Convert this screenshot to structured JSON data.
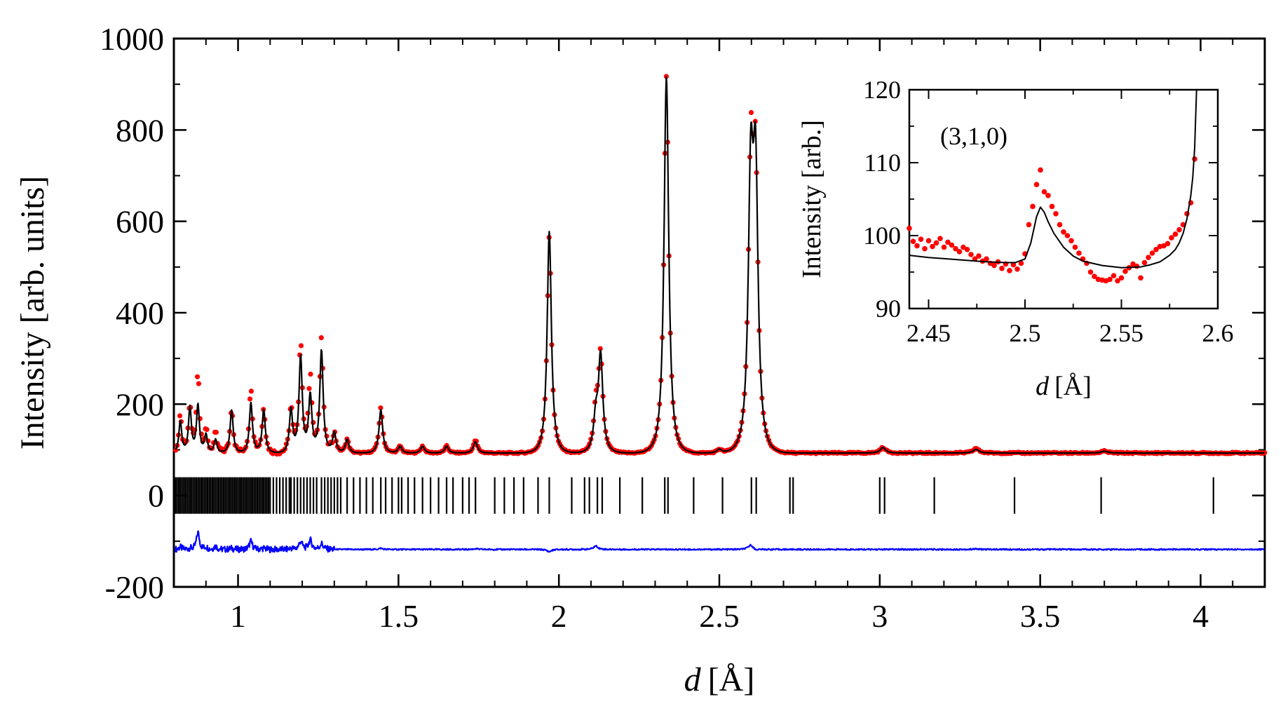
{
  "chart_data": [
    {
      "type": "scatter",
      "role": "main",
      "title": "",
      "xlabel": {
        "var": "d",
        "unit": "[Å]"
      },
      "ylabel": "Intensity [arb. units]",
      "xlim": [
        0.8,
        4.2
      ],
      "ylim": [
        -200,
        1000
      ],
      "x_ticks": [
        1,
        1.5,
        2,
        2.5,
        3,
        3.5,
        4
      ],
      "x_tick_labels": [
        "1",
        "1.5",
        "2",
        "2.5",
        "3",
        "3.5",
        "4"
      ],
      "y_ticks": [
        -200,
        0,
        200,
        400,
        600,
        800,
        1000
      ],
      "y_tick_labels": [
        "-200",
        "0",
        "200",
        "400",
        "600",
        "800",
        "1000"
      ],
      "grid": false,
      "background": 93,
      "colors": {
        "observed": "#ff0000",
        "calculated": "#000000",
        "difference": "#0000ff",
        "tick_marks": "#000000"
      },
      "series": [
        {
          "name": "observed",
          "style": "points"
        },
        {
          "name": "calculated",
          "style": "line"
        },
        {
          "name": "difference",
          "style": "line",
          "offset": -118
        },
        {
          "name": "reflection positions",
          "style": "ticks",
          "y_range": [
            -40,
            40
          ]
        }
      ],
      "peaks": [
        {
          "d": 0.82,
          "height": 70,
          "obs_height": 80
        },
        {
          "d": 0.85,
          "height": 100,
          "obs_height": 105
        },
        {
          "d": 0.875,
          "height": 105,
          "obs_height": 180
        },
        {
          "d": 0.9,
          "height": 40,
          "obs_height": 50
        },
        {
          "d": 0.93,
          "height": 30,
          "obs_height": 45
        },
        {
          "d": 0.98,
          "height": 95,
          "obs_height": 100
        },
        {
          "d": 1.04,
          "height": 110,
          "obs_height": 145
        },
        {
          "d": 1.08,
          "height": 95,
          "obs_height": 100
        },
        {
          "d": 1.165,
          "height": 95,
          "obs_height": 100
        },
        {
          "d": 1.195,
          "height": 210,
          "obs_height": 245
        },
        {
          "d": 1.225,
          "height": 125,
          "obs_height": 165
        },
        {
          "d": 1.26,
          "height": 225,
          "obs_height": 250
        },
        {
          "d": 1.3,
          "height": 45,
          "obs_height": 45
        },
        {
          "d": 1.34,
          "height": 30,
          "obs_height": 30
        },
        {
          "d": 1.445,
          "height": 95,
          "obs_height": 100
        },
        {
          "d": 1.505,
          "height": 15,
          "obs_height": 15
        },
        {
          "d": 1.575,
          "height": 15,
          "obs_height": 15
        },
        {
          "d": 1.65,
          "height": 15,
          "obs_height": 15
        },
        {
          "d": 1.74,
          "height": 25,
          "obs_height": 28
        },
        {
          "d": 1.97,
          "height": 485,
          "obs_height": 475
        },
        {
          "d": 2.115,
          "height": 70,
          "obs_height": 85
        },
        {
          "d": 2.13,
          "height": 210,
          "obs_height": 210
        },
        {
          "d": 2.335,
          "height": 825,
          "obs_height": 825
        },
        {
          "d": 2.5,
          "height": 8,
          "obs_height": 8
        },
        {
          "d": 2.598,
          "height": 565,
          "obs_height": 585
        },
        {
          "d": 2.613,
          "height": 565,
          "obs_height": 560
        },
        {
          "d": 3.01,
          "height": 12,
          "obs_height": 12
        },
        {
          "d": 3.3,
          "height": 8,
          "obs_height": 10
        },
        {
          "d": 3.7,
          "height": 4,
          "obs_height": 4
        }
      ],
      "reflections": [
        0.805,
        0.81,
        0.815,
        0.82,
        0.825,
        0.83,
        0.835,
        0.84,
        0.845,
        0.85,
        0.855,
        0.86,
        0.865,
        0.87,
        0.875,
        0.88,
        0.885,
        0.89,
        0.895,
        0.9,
        0.905,
        0.91,
        0.915,
        0.92,
        0.925,
        0.93,
        0.935,
        0.94,
        0.945,
        0.95,
        0.955,
        0.96,
        0.965,
        0.97,
        0.975,
        0.98,
        0.985,
        0.99,
        0.995,
        1.0,
        1.005,
        1.01,
        1.015,
        1.02,
        1.025,
        1.03,
        1.035,
        1.04,
        1.045,
        1.05,
        1.055,
        1.06,
        1.065,
        1.07,
        1.075,
        1.08,
        1.085,
        1.09,
        1.095,
        1.1,
        1.11,
        1.12,
        1.13,
        1.14,
        1.15,
        1.16,
        1.165,
        1.175,
        1.185,
        1.195,
        1.205,
        1.215,
        1.225,
        1.235,
        1.245,
        1.26,
        1.27,
        1.28,
        1.29,
        1.3,
        1.31,
        1.32,
        1.34,
        1.36,
        1.38,
        1.4,
        1.42,
        1.445,
        1.46,
        1.48,
        1.5,
        1.51,
        1.53,
        1.55,
        1.575,
        1.6,
        1.625,
        1.65,
        1.67,
        1.7,
        1.72,
        1.74,
        1.8,
        1.83,
        1.86,
        1.89,
        1.935,
        1.97,
        2.04,
        2.08,
        2.095,
        2.12,
        2.135,
        2.19,
        2.26,
        2.33,
        2.34,
        2.42,
        2.51,
        2.6,
        2.615,
        2.72,
        2.73,
        3.0,
        3.015,
        3.17,
        3.42,
        3.69,
        4.04
      ]
    },
    {
      "type": "scatter",
      "role": "inset",
      "title": "",
      "annotation": "(3,1,0)",
      "xlabel": {
        "var": "d",
        "unit": "[Å]"
      },
      "ylabel": "Intensity [arb.]",
      "xlim": [
        2.44,
        2.6
      ],
      "ylim": [
        90,
        120
      ],
      "x_ticks": [
        2.45,
        2.5,
        2.55,
        2.6
      ],
      "x_tick_labels": [
        "2.45",
        "2.5",
        "2.55",
        "2.6"
      ],
      "y_ticks": [
        90,
        100,
        110,
        120
      ],
      "y_tick_labels": [
        "90",
        "100",
        "110",
        "120"
      ],
      "grid": false,
      "series": [
        {
          "name": "observed",
          "style": "points",
          "x": [
            2.44,
            2.442,
            2.444,
            2.446,
            2.448,
            2.45,
            2.452,
            2.454,
            2.456,
            2.458,
            2.46,
            2.462,
            2.464,
            2.466,
            2.468,
            2.47,
            2.472,
            2.474,
            2.476,
            2.478,
            2.48,
            2.482,
            2.484,
            2.486,
            2.488,
            2.49,
            2.492,
            2.494,
            2.496,
            2.498,
            2.5,
            2.502,
            2.504,
            2.506,
            2.508,
            2.51,
            2.512,
            2.514,
            2.516,
            2.518,
            2.52,
            2.522,
            2.524,
            2.526,
            2.528,
            2.53,
            2.532,
            2.534,
            2.536,
            2.538,
            2.54,
            2.542,
            2.544,
            2.546,
            2.548,
            2.55,
            2.552,
            2.554,
            2.556,
            2.558,
            2.56,
            2.562,
            2.564,
            2.566,
            2.568,
            2.57,
            2.572,
            2.574,
            2.576,
            2.578,
            2.58,
            2.582,
            2.584,
            2.586,
            2.588
          ],
          "y": [
            101,
            99.2,
            98.6,
            99.5,
            98.2,
            99.3,
            98.5,
            99,
            99.6,
            98.4,
            99.1,
            98.7,
            98.2,
            97.8,
            98.4,
            98.1,
            97.4,
            96.8,
            97.2,
            96.5,
            96.8,
            96.2,
            95.9,
            96.4,
            95.5,
            96.1,
            95.2,
            96,
            95.4,
            96.2,
            97.5,
            101.5,
            104,
            107,
            109,
            106,
            105.5,
            104,
            103,
            101.5,
            100.5,
            100,
            99.3,
            98.4,
            97.6,
            96.8,
            96.2,
            95,
            94.4,
            94,
            93.9,
            93.8,
            94,
            94.5,
            93.8,
            94.2,
            95.1,
            95.6,
            96.1,
            95.8,
            94.2,
            96.3,
            97,
            97.6,
            98.1,
            98.5,
            98.6,
            98.9,
            99.7,
            100.2,
            100.8,
            101.5,
            103,
            104.5,
            110.5
          ]
        },
        {
          "name": "calculated",
          "style": "line",
          "x": [
            2.44,
            2.45,
            2.46,
            2.47,
            2.48,
            2.49,
            2.495,
            2.5,
            2.503,
            2.506,
            2.508,
            2.51,
            2.512,
            2.515,
            2.52,
            2.525,
            2.53,
            2.54,
            2.55,
            2.56,
            2.565,
            2.57,
            2.575,
            2.578,
            2.58,
            2.582,
            2.584,
            2.586,
            2.587,
            2.588,
            2.589
          ],
          "y": [
            97.3,
            97,
            96.8,
            96.6,
            96.4,
            96.3,
            96.3,
            96.8,
            99,
            102.6,
            103.9,
            103.2,
            101.9,
            100.3,
            98.4,
            97.2,
            96.5,
            95.9,
            95.6,
            95.7,
            96,
            96.4,
            97.3,
            98.1,
            99,
            100.3,
            102.3,
            105.5,
            108,
            112,
            120
          ]
        }
      ]
    }
  ]
}
